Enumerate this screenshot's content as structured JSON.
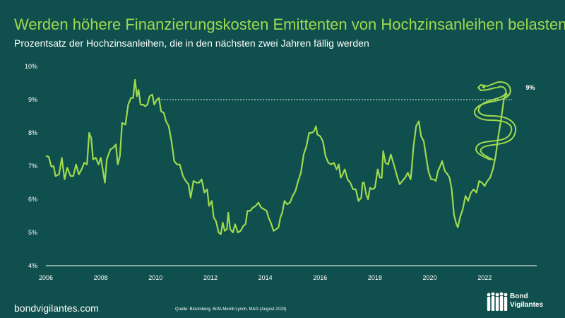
{
  "title": "Werden höhere Finanzierungskosten Emittenten von Hochzinsanleihen belasten?",
  "subtitle": "Prozentsatz der Hochzinsanleihen, die in den nächsten zwei Jahren fällig werden",
  "footer": {
    "site": "bondvigilantes.com",
    "source": "Quelle: Bloomberg, BofA Merrill Lynch, M&G (August 2023)",
    "brand_line1": "Bond",
    "brand_line2": "Vigilantes"
  },
  "colors": {
    "background": "#0f4f4d",
    "line": "#9fd94f",
    "text": "#ffffff"
  },
  "icons": [
    "snake-icon",
    "people-silhouette-icon"
  ],
  "chart_data": {
    "type": "line",
    "title": "",
    "xlabel": "",
    "ylabel": "",
    "xlim": [
      2006,
      2023.9
    ],
    "ylim": [
      4,
      10
    ],
    "x_ticks": [
      "2006",
      "2008",
      "2010",
      "2012",
      "2014",
      "2016",
      "2018",
      "2020",
      "2022"
    ],
    "y_ticks": [
      "4%",
      "5%",
      "6%",
      "7%",
      "8%",
      "9%",
      "10%"
    ],
    "grid": false,
    "reference_line": {
      "y": 9,
      "style": "dotted"
    },
    "annotation": {
      "text": "9%",
      "x": 2023.5,
      "y": 9.3
    },
    "series": [
      {
        "values": [
          [
            2006.0,
            7.3
          ],
          [
            2006.1,
            7.28
          ],
          [
            2006.2,
            6.98
          ],
          [
            2006.28,
            7.0
          ],
          [
            2006.35,
            6.7
          ],
          [
            2006.48,
            6.75
          ],
          [
            2006.58,
            7.25
          ],
          [
            2006.68,
            6.6
          ],
          [
            2006.78,
            6.95
          ],
          [
            2006.9,
            6.7
          ],
          [
            2007.0,
            6.7
          ],
          [
            2007.1,
            7.05
          ],
          [
            2007.2,
            6.75
          ],
          [
            2007.3,
            6.9
          ],
          [
            2007.4,
            7.1
          ],
          [
            2007.5,
            7.05
          ],
          [
            2007.58,
            8.0
          ],
          [
            2007.65,
            7.85
          ],
          [
            2007.72,
            7.2
          ],
          [
            2007.82,
            7.25
          ],
          [
            2007.92,
            7.05
          ],
          [
            2008.0,
            7.25
          ],
          [
            2008.08,
            6.85
          ],
          [
            2008.15,
            6.5
          ],
          [
            2008.22,
            7.2
          ],
          [
            2008.35,
            7.5
          ],
          [
            2008.45,
            7.55
          ],
          [
            2008.55,
            7.65
          ],
          [
            2008.62,
            7.05
          ],
          [
            2008.7,
            7.3
          ],
          [
            2008.78,
            8.3
          ],
          [
            2008.9,
            8.25
          ],
          [
            2009.0,
            8.85
          ],
          [
            2009.1,
            9.05
          ],
          [
            2009.18,
            9.05
          ],
          [
            2009.25,
            9.6
          ],
          [
            2009.32,
            9.1
          ],
          [
            2009.38,
            9.3
          ],
          [
            2009.45,
            8.85
          ],
          [
            2009.55,
            8.85
          ],
          [
            2009.62,
            8.8
          ],
          [
            2009.7,
            8.85
          ],
          [
            2009.78,
            9.1
          ],
          [
            2009.88,
            9.15
          ],
          [
            2009.95,
            8.85
          ],
          [
            2010.05,
            9.0
          ],
          [
            2010.12,
            9.05
          ],
          [
            2010.2,
            8.65
          ],
          [
            2010.3,
            8.6
          ],
          [
            2010.38,
            8.35
          ],
          [
            2010.48,
            8.2
          ],
          [
            2010.58,
            7.75
          ],
          [
            2010.68,
            7.15
          ],
          [
            2010.78,
            7.05
          ],
          [
            2010.88,
            7.05
          ],
          [
            2011.0,
            6.7
          ],
          [
            2011.1,
            6.55
          ],
          [
            2011.2,
            6.45
          ],
          [
            2011.28,
            6.05
          ],
          [
            2011.38,
            6.55
          ],
          [
            2011.48,
            6.5
          ],
          [
            2011.58,
            6.5
          ],
          [
            2011.68,
            6.6
          ],
          [
            2011.78,
            6.2
          ],
          [
            2011.88,
            6.3
          ],
          [
            2011.95,
            5.8
          ],
          [
            2012.05,
            5.95
          ],
          [
            2012.12,
            5.45
          ],
          [
            2012.2,
            5.35
          ],
          [
            2012.3,
            5.0
          ],
          [
            2012.38,
            4.95
          ],
          [
            2012.45,
            5.3
          ],
          [
            2012.52,
            5.05
          ],
          [
            2012.6,
            5.1
          ],
          [
            2012.65,
            5.6
          ],
          [
            2012.72,
            5.1
          ],
          [
            2012.82,
            5.0
          ],
          [
            2012.9,
            5.25
          ],
          [
            2013.0,
            5.0
          ],
          [
            2013.1,
            5.05
          ],
          [
            2013.2,
            5.2
          ],
          [
            2013.28,
            5.25
          ],
          [
            2013.35,
            5.65
          ],
          [
            2013.45,
            5.65
          ],
          [
            2013.55,
            5.75
          ],
          [
            2013.65,
            5.8
          ],
          [
            2013.75,
            5.9
          ],
          [
            2013.85,
            5.75
          ],
          [
            2013.95,
            5.7
          ],
          [
            2014.05,
            5.65
          ],
          [
            2014.12,
            5.45
          ],
          [
            2014.2,
            5.3
          ],
          [
            2014.3,
            5.05
          ],
          [
            2014.4,
            5.1
          ],
          [
            2014.48,
            5.15
          ],
          [
            2014.55,
            5.45
          ],
          [
            2014.62,
            5.6
          ],
          [
            2014.7,
            5.95
          ],
          [
            2014.8,
            5.85
          ],
          [
            2014.9,
            5.9
          ],
          [
            2015.0,
            6.1
          ],
          [
            2015.1,
            6.25
          ],
          [
            2015.2,
            6.55
          ],
          [
            2015.3,
            6.8
          ],
          [
            2015.4,
            7.35
          ],
          [
            2015.5,
            7.6
          ],
          [
            2015.6,
            8.0
          ],
          [
            2015.7,
            8.0
          ],
          [
            2015.78,
            8.05
          ],
          [
            2015.85,
            8.2
          ],
          [
            2015.9,
            7.95
          ],
          [
            2016.0,
            7.9
          ],
          [
            2016.1,
            7.75
          ],
          [
            2016.2,
            7.3
          ],
          [
            2016.3,
            7.1
          ],
          [
            2016.4,
            7.05
          ],
          [
            2016.5,
            7.1
          ],
          [
            2016.6,
            6.9
          ],
          [
            2016.68,
            7.05
          ],
          [
            2016.75,
            6.65
          ],
          [
            2016.82,
            6.75
          ],
          [
            2016.9,
            6.9
          ],
          [
            2017.0,
            6.6
          ],
          [
            2017.1,
            6.5
          ],
          [
            2017.2,
            6.3
          ],
          [
            2017.3,
            6.3
          ],
          [
            2017.4,
            5.95
          ],
          [
            2017.5,
            6.05
          ],
          [
            2017.55,
            6.5
          ],
          [
            2017.6,
            6.5
          ],
          [
            2017.68,
            6.15
          ],
          [
            2017.75,
            6.0
          ],
          [
            2017.82,
            6.35
          ],
          [
            2017.9,
            6.3
          ],
          [
            2018.0,
            6.35
          ],
          [
            2018.1,
            6.9
          ],
          [
            2018.18,
            6.65
          ],
          [
            2018.25,
            6.65
          ],
          [
            2018.3,
            7.45
          ],
          [
            2018.38,
            7.1
          ],
          [
            2018.48,
            7.05
          ],
          [
            2018.58,
            7.35
          ],
          [
            2018.65,
            7.15
          ],
          [
            2018.72,
            6.95
          ],
          [
            2018.82,
            6.65
          ],
          [
            2018.9,
            6.45
          ],
          [
            2019.0,
            6.55
          ],
          [
            2019.1,
            6.65
          ],
          [
            2019.2,
            6.8
          ],
          [
            2019.3,
            6.6
          ],
          [
            2019.35,
            7.0
          ],
          [
            2019.4,
            7.55
          ],
          [
            2019.5,
            8.2
          ],
          [
            2019.6,
            8.35
          ],
          [
            2019.68,
            7.9
          ],
          [
            2019.78,
            7.75
          ],
          [
            2019.9,
            7.1
          ],
          [
            2019.95,
            6.85
          ],
          [
            2020.05,
            6.6
          ],
          [
            2020.15,
            6.6
          ],
          [
            2020.22,
            6.55
          ],
          [
            2020.3,
            6.85
          ],
          [
            2020.38,
            7.0
          ],
          [
            2020.45,
            7.15
          ],
          [
            2020.55,
            6.85
          ],
          [
            2020.65,
            6.75
          ],
          [
            2020.72,
            6.65
          ],
          [
            2020.8,
            6.3
          ],
          [
            2020.88,
            5.55
          ],
          [
            2020.95,
            5.3
          ],
          [
            2021.02,
            5.15
          ],
          [
            2021.1,
            5.45
          ],
          [
            2021.2,
            5.7
          ],
          [
            2021.3,
            6.1
          ],
          [
            2021.4,
            5.95
          ],
          [
            2021.5,
            6.2
          ],
          [
            2021.6,
            6.3
          ],
          [
            2021.7,
            6.2
          ],
          [
            2021.8,
            6.55
          ],
          [
            2021.9,
            6.5
          ],
          [
            2022.0,
            6.4
          ],
          [
            2022.1,
            6.55
          ],
          [
            2022.2,
            6.65
          ],
          [
            2022.3,
            6.9
          ],
          [
            2022.4,
            7.3
          ],
          [
            2022.5,
            7.9
          ],
          [
            2022.6,
            8.4
          ],
          [
            2022.7,
            9.0
          ],
          [
            2022.78,
            9.2
          ],
          [
            2022.85,
            9.1
          ]
        ]
      }
    ]
  }
}
